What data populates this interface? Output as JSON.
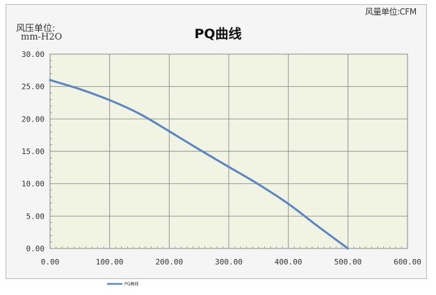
{
  "chart_data": {
    "type": "line",
    "title": "PQ曲线",
    "ylabel": "风压单位:",
    "yunit": "mm-H2O",
    "xunit_label": "风量单位:CFM",
    "xlim": [
      0,
      600
    ],
    "ylim": [
      0,
      30
    ],
    "x_ticks": [
      "0.00",
      "100.00",
      "200.00",
      "300.00",
      "400.00",
      "500.00",
      "600.00"
    ],
    "y_ticks": [
      "0.00",
      "5.00",
      "10.00",
      "15.00",
      "20.00",
      "25.00",
      "30.00"
    ],
    "grid": true,
    "legend_position": "bottom-left",
    "series": [
      {
        "name": "PQ曲线",
        "color": "#5b86c2",
        "x": [
          0,
          50,
          100,
          150,
          200,
          250,
          300,
          350,
          400,
          450,
          500
        ],
        "y": [
          26.0,
          24.6,
          22.9,
          20.8,
          18.1,
          15.3,
          12.6,
          9.9,
          6.9,
          3.4,
          0.0
        ]
      }
    ]
  }
}
